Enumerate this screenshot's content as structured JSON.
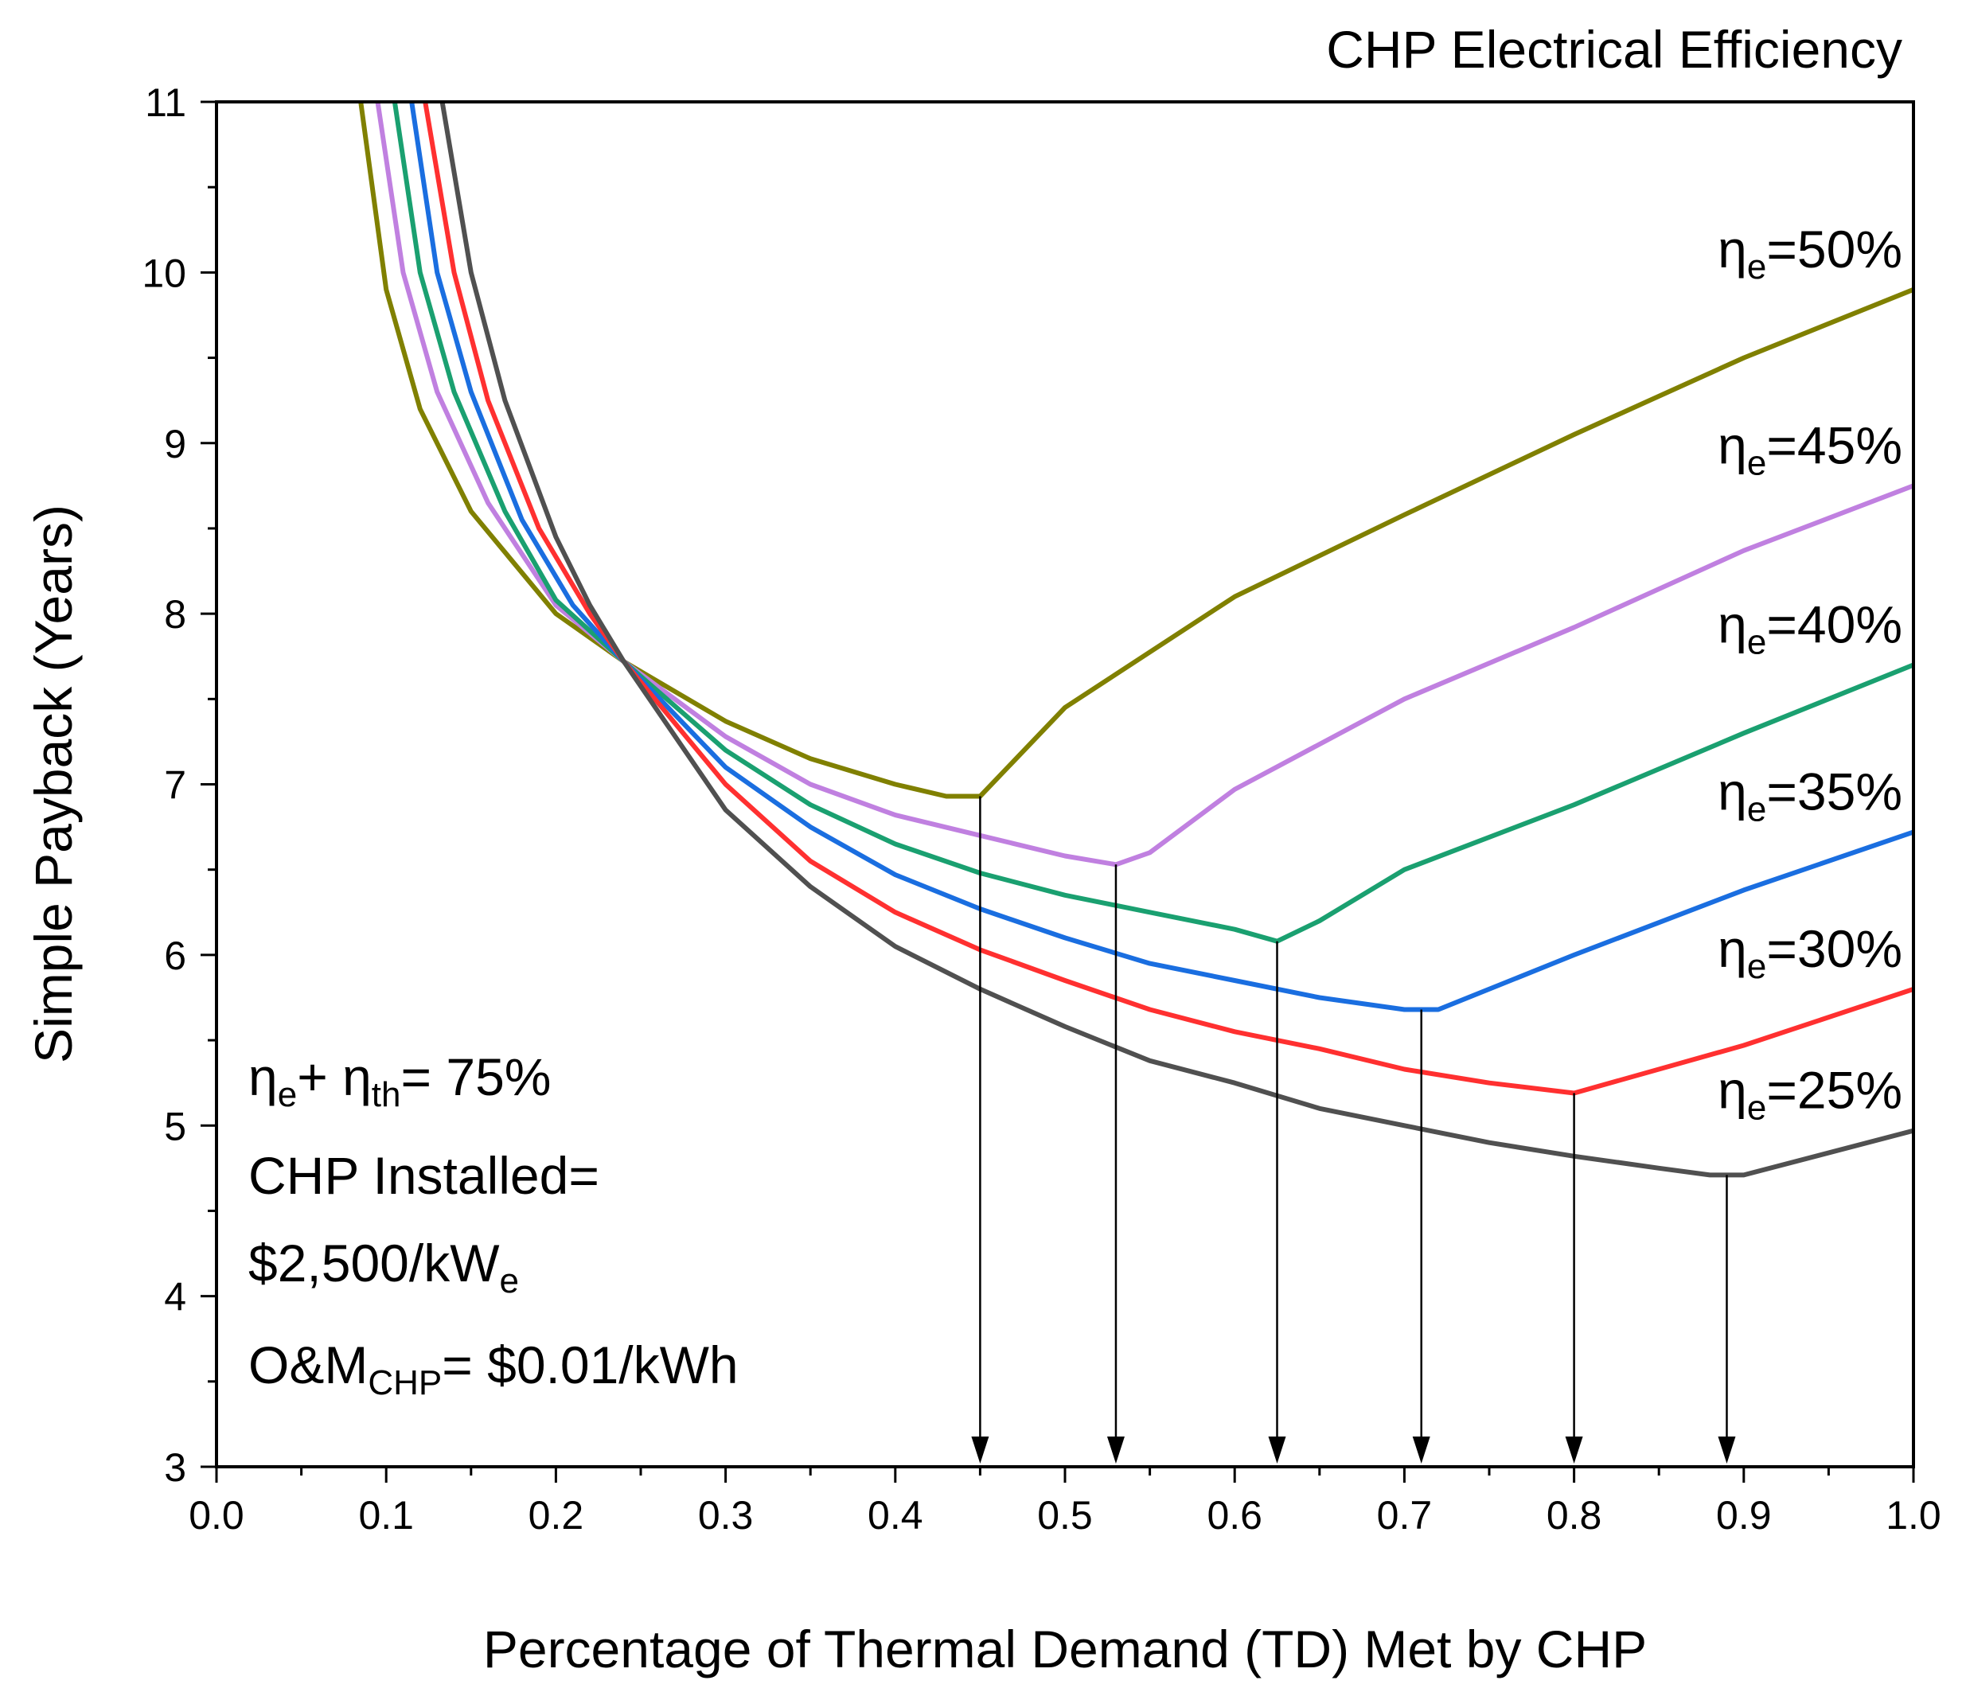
{
  "chart_data": {
    "type": "line",
    "title": "CHP Electrical Efficiency",
    "xlabel": "Percentage of Thermal Demand (TD) Met by CHP",
    "ylabel": "Simple Payback (Years)",
    "xlim": [
      0.0,
      1.0
    ],
    "ylim": [
      3,
      11
    ],
    "xticks": [
      "0.0",
      "0.1",
      "0.2",
      "0.3",
      "0.4",
      "0.5",
      "0.6",
      "0.7",
      "0.8",
      "0.9",
      "1.0"
    ],
    "yticks": [
      "3",
      "4",
      "5",
      "6",
      "7",
      "8",
      "9",
      "10",
      "11"
    ],
    "grid": false,
    "series": [
      {
        "name": "ηe=50%",
        "label_base": "η",
        "label_sub": "e",
        "label_value": "=50%",
        "color": "#808000",
        "optimum_x": 0.45,
        "points": [
          [
            0.085,
            11.0
          ],
          [
            0.1,
            9.9
          ],
          [
            0.12,
            9.2
          ],
          [
            0.15,
            8.6
          ],
          [
            0.2,
            8.0
          ],
          [
            0.24,
            7.72
          ],
          [
            0.3,
            7.37
          ],
          [
            0.35,
            7.15
          ],
          [
            0.4,
            7.0
          ],
          [
            0.43,
            6.93
          ],
          [
            0.45,
            6.93
          ],
          [
            0.5,
            7.45
          ],
          [
            0.6,
            8.1
          ],
          [
            0.7,
            8.58
          ],
          [
            0.8,
            9.05
          ],
          [
            0.9,
            9.5
          ],
          [
            1.0,
            9.9
          ]
        ]
      },
      {
        "name": "ηe=45%",
        "label_base": "η",
        "label_sub": "e",
        "label_value": "=45%",
        "color": "#c080e0",
        "optimum_x": 0.53,
        "points": [
          [
            0.095,
            11.0
          ],
          [
            0.11,
            10.0
          ],
          [
            0.13,
            9.3
          ],
          [
            0.16,
            8.65
          ],
          [
            0.2,
            8.05
          ],
          [
            0.24,
            7.72
          ],
          [
            0.3,
            7.28
          ],
          [
            0.35,
            7.0
          ],
          [
            0.4,
            6.82
          ],
          [
            0.45,
            6.7
          ],
          [
            0.5,
            6.58
          ],
          [
            0.53,
            6.53
          ],
          [
            0.55,
            6.6
          ],
          [
            0.6,
            6.97
          ],
          [
            0.7,
            7.5
          ],
          [
            0.8,
            7.92
          ],
          [
            0.9,
            8.37
          ],
          [
            1.0,
            8.75
          ]
        ]
      },
      {
        "name": "ηe=40%",
        "label_base": "η",
        "label_sub": "e",
        "label_value": "=40%",
        "color": "#1aa070",
        "optimum_x": 0.625,
        "points": [
          [
            0.105,
            11.0
          ],
          [
            0.12,
            10.0
          ],
          [
            0.14,
            9.3
          ],
          [
            0.17,
            8.6
          ],
          [
            0.2,
            8.08
          ],
          [
            0.24,
            7.72
          ],
          [
            0.3,
            7.2
          ],
          [
            0.35,
            6.88
          ],
          [
            0.4,
            6.65
          ],
          [
            0.45,
            6.48
          ],
          [
            0.5,
            6.35
          ],
          [
            0.55,
            6.25
          ],
          [
            0.6,
            6.15
          ],
          [
            0.625,
            6.08
          ],
          [
            0.65,
            6.2
          ],
          [
            0.7,
            6.5
          ],
          [
            0.8,
            6.88
          ],
          [
            0.9,
            7.3
          ],
          [
            1.0,
            7.7
          ]
        ]
      },
      {
        "name": "ηe=35%",
        "label_base": "η",
        "label_sub": "e",
        "label_value": "=35%",
        "color": "#1a6ee0",
        "optimum_x": 0.71,
        "points": [
          [
            0.115,
            11.0
          ],
          [
            0.13,
            10.0
          ],
          [
            0.15,
            9.3
          ],
          [
            0.18,
            8.55
          ],
          [
            0.21,
            8.05
          ],
          [
            0.24,
            7.72
          ],
          [
            0.3,
            7.1
          ],
          [
            0.35,
            6.75
          ],
          [
            0.4,
            6.47
          ],
          [
            0.45,
            6.27
          ],
          [
            0.5,
            6.1
          ],
          [
            0.55,
            5.95
          ],
          [
            0.6,
            5.85
          ],
          [
            0.65,
            5.75
          ],
          [
            0.7,
            5.68
          ],
          [
            0.72,
            5.68
          ],
          [
            0.8,
            6.0
          ],
          [
            0.9,
            6.38
          ],
          [
            1.0,
            6.72
          ]
        ]
      },
      {
        "name": "ηe=30%",
        "label_base": "η",
        "label_sub": "e",
        "label_value": "=30%",
        "color": "#ff3030",
        "optimum_x": 0.8,
        "points": [
          [
            0.123,
            11.0
          ],
          [
            0.14,
            10.0
          ],
          [
            0.16,
            9.25
          ],
          [
            0.19,
            8.5
          ],
          [
            0.22,
            8.0
          ],
          [
            0.24,
            7.72
          ],
          [
            0.3,
            7.0
          ],
          [
            0.35,
            6.55
          ],
          [
            0.4,
            6.25
          ],
          [
            0.45,
            6.03
          ],
          [
            0.5,
            5.85
          ],
          [
            0.55,
            5.68
          ],
          [
            0.6,
            5.55
          ],
          [
            0.65,
            5.45
          ],
          [
            0.7,
            5.33
          ],
          [
            0.75,
            5.25
          ],
          [
            0.8,
            5.19
          ],
          [
            0.9,
            5.47
          ],
          [
            1.0,
            5.8
          ]
        ]
      },
      {
        "name": "ηe=25%",
        "label_base": "η",
        "label_sub": "e",
        "label_value": "=25%",
        "color": "#505050",
        "optimum_x": 0.89,
        "points": [
          [
            0.133,
            11.0
          ],
          [
            0.15,
            10.0
          ],
          [
            0.17,
            9.25
          ],
          [
            0.2,
            8.45
          ],
          [
            0.22,
            8.05
          ],
          [
            0.24,
            7.72
          ],
          [
            0.3,
            6.85
          ],
          [
            0.35,
            6.4
          ],
          [
            0.4,
            6.05
          ],
          [
            0.45,
            5.8
          ],
          [
            0.5,
            5.58
          ],
          [
            0.55,
            5.38
          ],
          [
            0.6,
            5.25
          ],
          [
            0.65,
            5.1
          ],
          [
            0.7,
            5.0
          ],
          [
            0.75,
            4.9
          ],
          [
            0.8,
            4.82
          ],
          [
            0.85,
            4.75
          ],
          [
            0.88,
            4.71
          ],
          [
            0.9,
            4.71
          ],
          [
            1.0,
            4.97
          ]
        ]
      }
    ],
    "annotations": {
      "efficiency": {
        "part1": "η",
        "sub1": "e",
        "part2": "+ η",
        "sub2": "th",
        "part3": "= 75%"
      },
      "installed_line1": "CHP Installed=",
      "installed_line2": "$2,500/kW",
      "installed_sub": "e",
      "om_prefix": "O&M",
      "om_sub": "CHP",
      "om_value": "= $0.01/kWh"
    }
  }
}
